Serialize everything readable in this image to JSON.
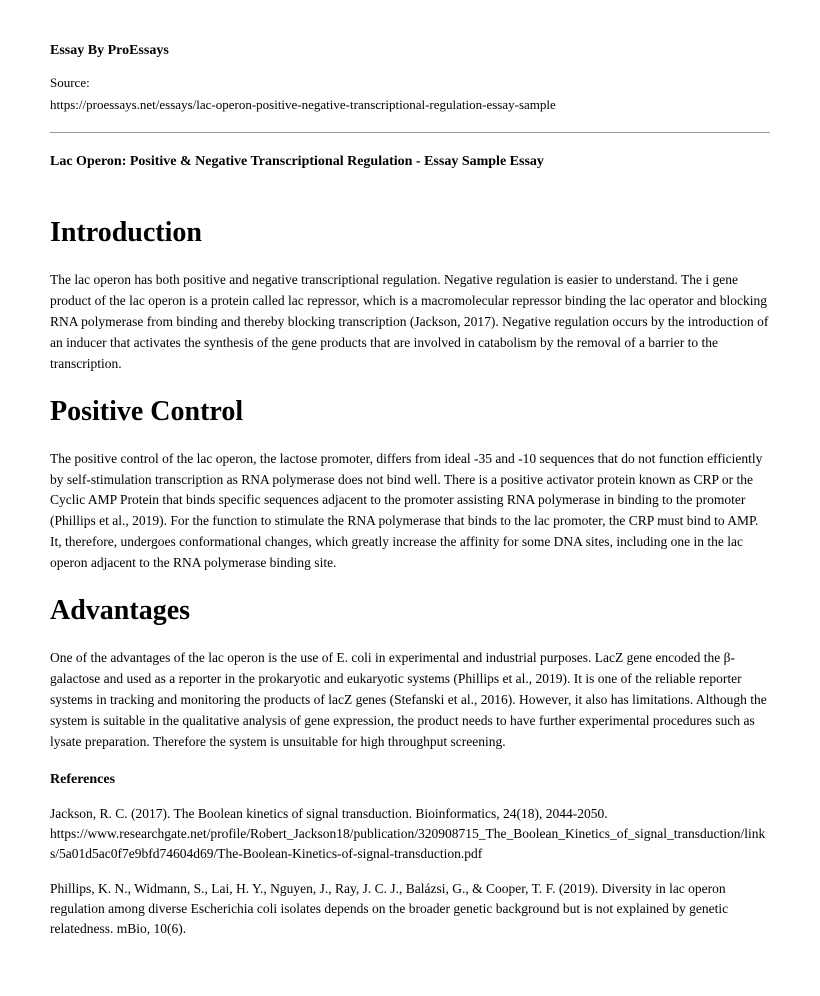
{
  "header": {
    "essay_by": "Essay By ProEssays",
    "source_label": "Source:",
    "source_url": "https://proessays.net/essays/lac-operon-positive-negative-transcriptional-regulation-essay-sample"
  },
  "title": "Lac Operon: Positive & Negative Transcriptional Regulation - Essay Sample Essay",
  "sections": [
    {
      "heading": "Introduction",
      "body": "The lac operon has both positive and negative transcriptional regulation. Negative regulation is easier to understand. The i gene product of the lac operon is a protein called lac repressor, which is a macromolecular repressor binding the lac operator and blocking RNA polymerase from binding and thereby blocking transcription (Jackson, 2017). Negative regulation occurs by the introduction of an inducer that activates the synthesis of the gene products that are involved in catabolism by the removal of a barrier to the transcription."
    },
    {
      "heading": "Positive Control",
      "body": "The positive control of the lac operon, the lactose promoter, differs from ideal -35 and -10 sequences that do not function efficiently by self-stimulation transcription as RNA polymerase does not bind well. There is a positive activator protein known as CRP or the Cyclic AMP Protein that binds specific sequences adjacent to the promoter assisting RNA polymerase in binding to the promoter (Phillips et al., 2019). For the function to stimulate the RNA polymerase that binds to the lac promoter, the CRP must bind to AMP. It, therefore, undergoes conformational changes, which greatly increase the affinity for some DNA sites, including one in the lac operon adjacent to the RNA polymerase binding site."
    },
    {
      "heading": "Advantages",
      "body": "One of the advantages of the lac operon is the use of E. coli in experimental and industrial purposes. LacZ gene encoded the β- galactose and used as a reporter in the prokaryotic and eukaryotic systems (Phillips et al., 2019). It is one of the reliable reporter systems in tracking and monitoring the products of lacZ genes (Stefanski et al., 2016). However, it also has limitations. Although the system is suitable in the qualitative analysis of gene expression, the product needs to have further experimental procedures such as lysate preparation. Therefore the system is unsuitable for high throughput screening."
    }
  ],
  "references": {
    "heading": "References",
    "items": [
      "Jackson, R. C. (2017). The Boolean kinetics of signal transduction. Bioinformatics, 24(18), 2044-2050. https://www.researchgate.net/profile/Robert_Jackson18/publication/320908715_The_Boolean_Kinetics_of_signal_transduction/links/5a01d5ac0f7e9bfd74604d69/The-Boolean-Kinetics-of-signal-transduction.pdf",
      "Phillips, K. N., Widmann, S., Lai, H. Y., Nguyen, J., Ray, J. C. J., Balázsi, G., & Cooper, T. F. (2019). Diversity in lac operon regulation among diverse Escherichia coli isolates depends on the broader genetic background but is not explained by genetic relatedness. mBio, 10(6)."
    ]
  }
}
